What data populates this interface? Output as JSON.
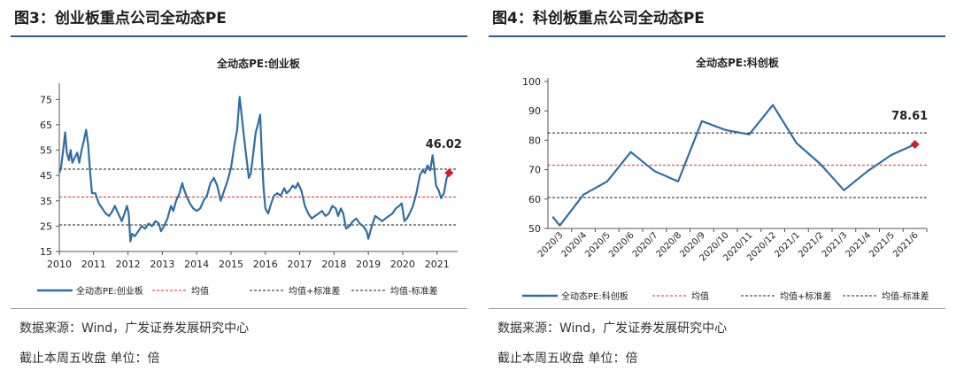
{
  "colors": {
    "line": "#2f6ea5",
    "mean": "#e8261b",
    "band": "#222222",
    "marker": "#d7192b",
    "rule": "#2a5a9a"
  },
  "left": {
    "figure_title": "图3：创业板重点公司全动态PE",
    "source": "数据来源：Wind，广发证券发展研究中心",
    "note": "截止本周五收盘  单位：倍",
    "chart_data": {
      "type": "line",
      "title": "全动态PE:创业板",
      "xlabel": "",
      "ylabel": "",
      "ylim": [
        15,
        80
      ],
      "yticks": [
        15,
        25,
        35,
        45,
        55,
        65,
        75
      ],
      "xlim": [
        2010,
        2021.6
      ],
      "xticks": [
        "2010",
        "2011",
        "2012",
        "2013",
        "2014",
        "2015",
        "2016",
        "2017",
        "2018",
        "2019",
        "2020",
        "2021"
      ],
      "grid": false,
      "legend_position": "bottom",
      "legend": [
        "全动态PE:创业板",
        "均值",
        "均值+标准差",
        "均值-标准差"
      ],
      "mean": 36.5,
      "upper": 47.5,
      "lower": 25.5,
      "last_label": "46.02",
      "series": [
        {
          "name": "全动态PE:创业板",
          "points": [
            [
              2010.0,
              46
            ],
            [
              2010.05,
              48
            ],
            [
              2010.12,
              56
            ],
            [
              2010.17,
              62
            ],
            [
              2010.22,
              54
            ],
            [
              2010.28,
              51
            ],
            [
              2010.33,
              55
            ],
            [
              2010.38,
              50
            ],
            [
              2010.45,
              52
            ],
            [
              2010.52,
              54
            ],
            [
              2010.58,
              50
            ],
            [
              2010.65,
              55
            ],
            [
              2010.72,
              59
            ],
            [
              2010.78,
              63
            ],
            [
              2010.84,
              57
            ],
            [
              2010.9,
              46
            ],
            [
              2010.95,
              38
            ],
            [
              2011.05,
              38
            ],
            [
              2011.15,
              34
            ],
            [
              2011.25,
              32
            ],
            [
              2011.35,
              30
            ],
            [
              2011.45,
              29
            ],
            [
              2011.55,
              31
            ],
            [
              2011.62,
              33
            ],
            [
              2011.68,
              31
            ],
            [
              2011.75,
              29
            ],
            [
              2011.82,
              27
            ],
            [
              2011.9,
              30
            ],
            [
              2011.97,
              33
            ],
            [
              2012.02,
              30
            ],
            [
              2012.07,
              19
            ],
            [
              2012.12,
              22
            ],
            [
              2012.2,
              21
            ],
            [
              2012.3,
              23
            ],
            [
              2012.4,
              25
            ],
            [
              2012.5,
              24
            ],
            [
              2012.6,
              26
            ],
            [
              2012.7,
              25
            ],
            [
              2012.8,
              27
            ],
            [
              2012.9,
              26
            ],
            [
              2012.96,
              23
            ],
            [
              2013.05,
              25
            ],
            [
              2013.15,
              28
            ],
            [
              2013.25,
              33
            ],
            [
              2013.32,
              31
            ],
            [
              2013.4,
              35
            ],
            [
              2013.5,
              38
            ],
            [
              2013.58,
              42
            ],
            [
              2013.62,
              40
            ],
            [
              2013.7,
              37
            ],
            [
              2013.8,
              34
            ],
            [
              2013.9,
              32
            ],
            [
              2014.0,
              31
            ],
            [
              2014.1,
              32
            ],
            [
              2014.2,
              35
            ],
            [
              2014.3,
              37
            ],
            [
              2014.4,
              42
            ],
            [
              2014.5,
              44
            ],
            [
              2014.6,
              41
            ],
            [
              2014.7,
              35
            ],
            [
              2014.8,
              39
            ],
            [
              2014.9,
              43
            ],
            [
              2015.0,
              48
            ],
            [
              2015.1,
              57
            ],
            [
              2015.18,
              63
            ],
            [
              2015.25,
              76
            ],
            [
              2015.3,
              70
            ],
            [
              2015.38,
              60
            ],
            [
              2015.45,
              52
            ],
            [
              2015.52,
              44
            ],
            [
              2015.58,
              46
            ],
            [
              2015.65,
              54
            ],
            [
              2015.72,
              62
            ],
            [
              2015.8,
              66
            ],
            [
              2015.85,
              69
            ],
            [
              2015.9,
              52
            ],
            [
              2015.95,
              40
            ],
            [
              2016.0,
              32
            ],
            [
              2016.08,
              30
            ],
            [
              2016.17,
              34
            ],
            [
              2016.25,
              37
            ],
            [
              2016.35,
              38
            ],
            [
              2016.45,
              37
            ],
            [
              2016.55,
              40
            ],
            [
              2016.62,
              38
            ],
            [
              2016.7,
              39
            ],
            [
              2016.8,
              41
            ],
            [
              2016.88,
              40
            ],
            [
              2016.95,
              42
            ],
            [
              2017.05,
              39
            ],
            [
              2017.15,
              33
            ],
            [
              2017.25,
              30
            ],
            [
              2017.35,
              28
            ],
            [
              2017.45,
              29
            ],
            [
              2017.55,
              30
            ],
            [
              2017.65,
              31
            ],
            [
              2017.75,
              29
            ],
            [
              2017.85,
              30
            ],
            [
              2017.95,
              33
            ],
            [
              2018.05,
              32
            ],
            [
              2018.12,
              29
            ],
            [
              2018.2,
              32
            ],
            [
              2018.27,
              30
            ],
            [
              2018.35,
              24
            ],
            [
              2018.45,
              25
            ],
            [
              2018.55,
              27
            ],
            [
              2018.65,
              28
            ],
            [
              2018.75,
              26
            ],
            [
              2018.85,
              25
            ],
            [
              2018.95,
              23
            ],
            [
              2019.0,
              20
            ],
            [
              2019.1,
              25
            ],
            [
              2019.2,
              29
            ],
            [
              2019.3,
              28
            ],
            [
              2019.4,
              27
            ],
            [
              2019.5,
              28
            ],
            [
              2019.6,
              29
            ],
            [
              2019.7,
              30
            ],
            [
              2019.8,
              32
            ],
            [
              2019.9,
              33
            ],
            [
              2019.97,
              34
            ],
            [
              2020.05,
              27
            ],
            [
              2020.12,
              28
            ],
            [
              2020.2,
              30
            ],
            [
              2020.3,
              33
            ],
            [
              2020.4,
              38
            ],
            [
              2020.5,
              45
            ],
            [
              2020.58,
              47
            ],
            [
              2020.65,
              46
            ],
            [
              2020.72,
              49
            ],
            [
              2020.8,
              47
            ],
            [
              2020.87,
              53
            ],
            [
              2020.92,
              48
            ],
            [
              2020.97,
              41
            ],
            [
              2021.05,
              39
            ],
            [
              2021.12,
              36
            ],
            [
              2021.2,
              38
            ],
            [
              2021.28,
              44
            ],
            [
              2021.35,
              46.02
            ]
          ]
        }
      ]
    }
  },
  "right": {
    "figure_title": "图4：科创板重点公司全动态PE",
    "source": "数据来源：Wind，广发证券发展研究中心",
    "note": "截止本周五收盘  单位：倍",
    "chart_data": {
      "type": "line",
      "title": "全动态PE:科创板",
      "xlabel": "",
      "ylabel": "",
      "ylim": [
        50,
        100
      ],
      "yticks": [
        50,
        60,
        70,
        80,
        90,
        100
      ],
      "categories": [
        "2020/3",
        "2020/4",
        "2020/5",
        "2020/6",
        "2020/7",
        "2020/8",
        "2020/9",
        "2020/10",
        "2020/11",
        "2020/12",
        "2021/1",
        "2021/2",
        "2021/3",
        "2021/4",
        "2021/5",
        "2021/6"
      ],
      "grid": false,
      "legend_position": "bottom",
      "legend": [
        "全动态PE:科创板",
        "均值",
        "均值+标准差",
        "均值-标准差"
      ],
      "mean": 71.5,
      "upper": 82.5,
      "lower": 60.5,
      "last_label": "78.61",
      "series": [
        {
          "name": "全动态PE:科创板",
          "points": [
            [
              -0.3,
              54
            ],
            [
              0,
              51
            ],
            [
              1,
              61.5
            ],
            [
              2,
              66
            ],
            [
              3,
              76
            ],
            [
              4,
              69.5
            ],
            [
              5,
              66
            ],
            [
              6,
              86.5
            ],
            [
              7,
              83.5
            ],
            [
              8,
              82
            ],
            [
              9,
              92
            ],
            [
              10,
              79
            ],
            [
              11,
              72
            ],
            [
              12,
              63
            ],
            [
              13,
              69.5
            ],
            [
              14,
              75
            ],
            [
              15,
              78.61
            ]
          ]
        }
      ]
    }
  }
}
